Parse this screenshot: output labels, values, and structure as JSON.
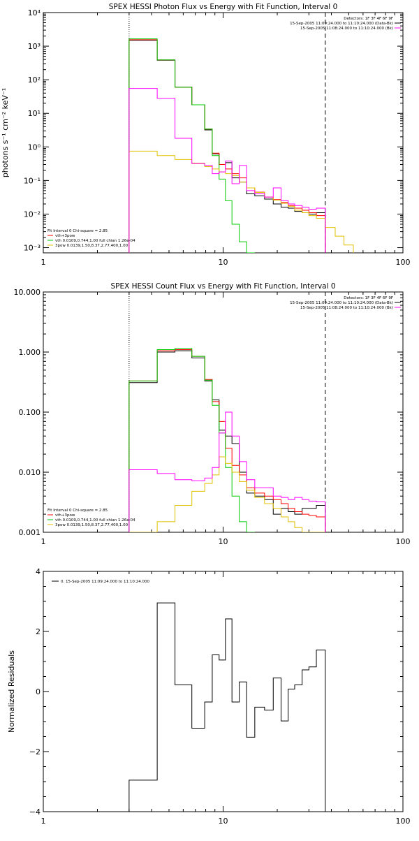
{
  "colors": {
    "background": "#ffffff",
    "axis": "#000000",
    "data": "#000000",
    "model": "#ff0000",
    "thermal": "#00cc00",
    "power": "#e0c000",
    "background_sub": "#ff00ff"
  },
  "chart_data": [
    {
      "type": "line",
      "title": "SPEX HESSI Photon Flux vs Energy with Fit Function, Interval 0",
      "ylabel": "photons s⁻¹ cm⁻² keV⁻¹",
      "xscale": "log",
      "yscale": "log",
      "xlim": [
        1,
        100
      ],
      "ylim": [
        0.0007,
        10000
      ],
      "xticks": [
        "1",
        "10",
        "100"
      ],
      "yticks": [
        "10³",
        "10²",
        "10¹",
        "10⁰",
        "10⁻¹",
        "10⁻²",
        "10⁻³"
      ],
      "ytick_vals": [
        1000,
        100,
        10,
        1,
        0.1,
        0.01,
        0.001
      ],
      "ytick_top": "10⁴",
      "vlines": [
        {
          "x": 3,
          "style": "dotted"
        },
        {
          "x": 37,
          "style": "dashed"
        }
      ],
      "legend_top": [
        "Detectors: 1F 3F 4F 6F 9F",
        "15-Sep-2005 11:09:24.000 to 11:10:24.000 (Data-Bk)",
        "15-Sep-2005 11:08:24.000 to 11:10:24.000 (Bk)"
      ],
      "legend_bottom": [
        "Fit Interval 0   Chi-square = 2.85",
        "vth+3pow",
        "vth 0.0109,0.744,1.00  full chian 1.26e-04",
        "3pow 0.0139,1.50,8.37,2.77,400,1.00"
      ],
      "edges": [
        3,
        4.3,
        5.4,
        6.7,
        7.9,
        8.7,
        9.5,
        10.3,
        11.2,
        12.3,
        13.5,
        15,
        17,
        19,
        21,
        23,
        25,
        27.5,
        30,
        33,
        37,
        42,
        47,
        53
      ],
      "series": [
        {
          "name": "Data-Bk",
          "color": "#000000",
          "values": [
            1500,
            380,
            60,
            18,
            3.2,
            0.62,
            0.3,
            0.34,
            0.12,
            0.09,
            0.04,
            0.035,
            0.028,
            0.02,
            0.016,
            0.015,
            0.012,
            0.011,
            0.01,
            0.011
          ]
        },
        {
          "name": "vth+3pow",
          "color": "#ff0000",
          "values": [
            1550,
            390,
            60,
            18,
            3.4,
            0.65,
            0.3,
            0.22,
            0.16,
            0.12,
            0.06,
            0.045,
            0.032,
            0.027,
            0.022,
            0.018,
            0.015,
            0.013,
            0.011,
            0.009
          ]
        },
        {
          "name": "vth",
          "color": "#00cc00",
          "values": [
            1650,
            390,
            60,
            18,
            3.4,
            0.55,
            0.11,
            0.025,
            0.005,
            0.0015,
            0.0006
          ]
        },
        {
          "name": "3pow",
          "color": "#e0c000",
          "values": [
            0.75,
            0.55,
            0.42,
            0.33,
            0.26,
            0.22,
            0.18,
            0.16,
            0.14,
            0.09,
            0.06,
            0.044,
            0.032,
            0.026,
            0.021,
            0.017,
            0.013,
            0.011,
            0.009,
            0.0075,
            0.004,
            0.0022,
            0.0012
          ]
        },
        {
          "name": "Bk",
          "color": "#ff00ff",
          "values": [
            55,
            28,
            1.8,
            0.32,
            0.28,
            0.16,
            0.18,
            0.38,
            0.08,
            0.28,
            0.05,
            0.04,
            0.032,
            0.06,
            0.025,
            0.02,
            0.018,
            0.016,
            0.014,
            0.015
          ]
        }
      ]
    },
    {
      "type": "line",
      "title": "SPEX HESSI Count Flux vs Energy with Fit Function, Interval 0",
      "xscale": "log",
      "yscale": "log",
      "xlim": [
        1,
        100
      ],
      "ylim": [
        0.001,
        10
      ],
      "xticks": [
        "1",
        "10",
        "100"
      ],
      "yticks": [
        "10.000",
        "1.000",
        "0.100",
        "0.010",
        "0.001"
      ],
      "ytick_vals": [
        10,
        1,
        0.1,
        0.01,
        0.001
      ],
      "vlines": [
        {
          "x": 3,
          "style": "dotted"
        },
        {
          "x": 37,
          "style": "dashed"
        }
      ],
      "legend_top": [
        "Detectors: 1F 3F 4F 6F 9F",
        "15-Sep-2005 11:09:24.000 to 11:10:24.000 (Data-Bk)",
        "15-Sep-2005 11:08:24.000 to 11:10:24.000 (Bk)"
      ],
      "legend_bottom": [
        "Fit Interval 0   Chi-square = 2.85",
        "vth+3pow",
        "vth 0.0109,0.744,1.00  full chian 1.26e-04",
        "3pow 0.0139,1.50,8.37,2.77,400,1.00"
      ],
      "edges": [
        3,
        4.3,
        5.4,
        6.7,
        7.9,
        8.7,
        9.5,
        10.3,
        11.2,
        12.3,
        13.5,
        15,
        17,
        19,
        21,
        23,
        25,
        27.5,
        30,
        33,
        37
      ],
      "series": [
        {
          "name": "Data-Bk",
          "color": "#000000",
          "values": [
            0.31,
            1.0,
            1.05,
            0.8,
            0.33,
            0.16,
            0.05,
            0.04,
            0.03,
            0.01,
            0.0045,
            0.004,
            0.0035,
            0.002,
            0.0025,
            0.0022,
            0.002,
            0.0025,
            0.0025,
            0.0028
          ]
        },
        {
          "name": "vth+3pow",
          "color": "#ff0000",
          "values": [
            0.33,
            1.05,
            1.1,
            0.85,
            0.35,
            0.15,
            0.07,
            0.025,
            0.013,
            0.009,
            0.0055,
            0.0045,
            0.004,
            0.0035,
            0.003,
            0.0025,
            0.0022,
            0.002,
            0.0019,
            0.0018
          ]
        },
        {
          "name": "vth",
          "color": "#00cc00",
          "values": [
            0.33,
            1.1,
            1.15,
            0.85,
            0.34,
            0.13,
            0.045,
            0.012,
            0.004,
            0.0015,
            0.001
          ]
        },
        {
          "name": "3pow",
          "color": "#e0c000",
          "values": [
            0.001,
            0.0015,
            0.0028,
            0.0048,
            0.0065,
            0.009,
            0.018,
            0.014,
            0.01,
            0.007,
            0.005,
            0.0038,
            0.003,
            0.0025,
            0.0018,
            0.0015,
            0.0012,
            0.001,
            0.0008,
            0.0007
          ]
        },
        {
          "name": "Bk",
          "color": "#ff00ff",
          "values": [
            0.011,
            0.0095,
            0.0075,
            0.0072,
            0.008,
            0.012,
            0.045,
            0.1,
            0.04,
            0.015,
            0.0075,
            0.0055,
            0.0055,
            0.004,
            0.0038,
            0.0035,
            0.0038,
            0.0035,
            0.0033,
            0.0032
          ]
        }
      ]
    },
    {
      "type": "line",
      "ylabel": "Normalized Residuals",
      "xscale": "log",
      "yscale": "linear",
      "xlim": [
        1,
        100
      ],
      "ylim": [
        -4,
        4
      ],
      "xticks": [
        "1",
        "10",
        "100"
      ],
      "yticks": [
        "4",
        "2",
        "0",
        "−2",
        "−4"
      ],
      "ytick_vals": [
        4,
        2,
        0,
        -2,
        -4
      ],
      "legend_top": [
        "0. 15-Sep-2005 11:09:24.000 to 11:10:24.000"
      ],
      "edges": [
        3,
        4.3,
        5.4,
        6.7,
        7.9,
        8.7,
        9.5,
        10.3,
        11.2,
        12.3,
        13.5,
        15,
        17,
        19,
        21,
        23,
        25,
        27.5,
        30,
        33,
        37
      ],
      "series": [
        {
          "name": "0. 15-Sep-2005 11:09:24.000 to 11:10:24.000",
          "color": "#000000",
          "values": [
            -2.95,
            2.95,
            0.22,
            -1.22,
            -0.35,
            1.22,
            1.05,
            2.42,
            -0.35,
            0.32,
            -1.52,
            -0.52,
            -0.62,
            0.45,
            -0.98,
            0.08,
            0.22,
            0.72,
            0.82,
            1.38
          ],
          "drop_to_bottom_at_end": true
        }
      ]
    }
  ]
}
